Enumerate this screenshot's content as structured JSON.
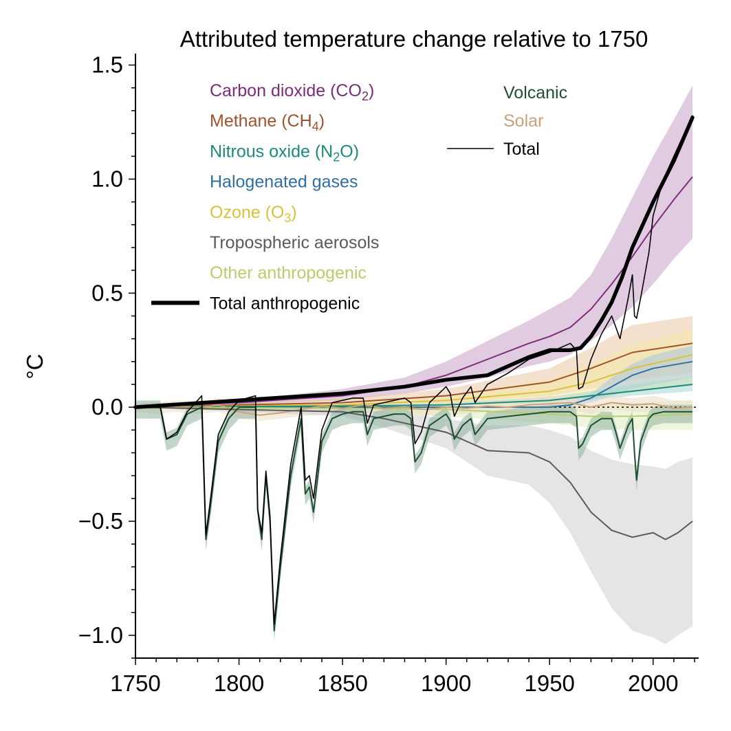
{
  "chart_data": {
    "type": "line",
    "title": "Attributed temperature change relative to 1750",
    "xlabel": "",
    "ylabel": "°C",
    "xlim": [
      1750,
      2022
    ],
    "ylim": [
      -1.1,
      1.55
    ],
    "xticks": [
      1750,
      1800,
      1850,
      1900,
      1950,
      2000
    ],
    "xtick_labels": [
      "1750",
      "1800",
      "1850",
      "1900",
      "1950",
      "2000"
    ],
    "yticks": [
      -1.0,
      -0.5,
      0.0,
      0.5,
      1.0,
      1.5
    ],
    "ytick_labels": [
      "−1.0",
      "−0.5",
      "0.0",
      "0.5",
      "1.0",
      "1.5"
    ],
    "grid": false,
    "zero_line": "dotted",
    "legend_left": [
      {
        "text": "Carbon dioxide (CO",
        "sub": "2",
        "tail": ")",
        "color": "#7b2d7b"
      },
      {
        "text": "Methane (CH",
        "sub": "4",
        "tail": ")",
        "color": "#a0522d"
      },
      {
        "text": "Nitrous oxide (N",
        "sub": "2",
        "tail": "O)",
        "color": "#1b8a7a"
      },
      {
        "text": "Halogenated gases",
        "sub": "",
        "tail": "",
        "color": "#2f6fa3"
      },
      {
        "text": "Ozone (O",
        "sub": "3",
        "tail": ")",
        "color": "#d9c23a"
      },
      {
        "text": "Tropospheric aerosols",
        "sub": "",
        "tail": "",
        "color": "#5a5a5a"
      },
      {
        "text": "Other anthropogenic",
        "sub": "",
        "tail": "",
        "color": "#b5cf6b"
      },
      {
        "text": "Total anthropogenic",
        "sub": "",
        "tail": "",
        "color": "#000000"
      }
    ],
    "legend_right": [
      {
        "text": "Volcanic",
        "color": "#1f4e32"
      },
      {
        "text": "Solar",
        "color": "#c9a27a"
      },
      {
        "text": "Total",
        "color": "#000000"
      }
    ],
    "series": [
      {
        "name": "Carbon dioxide (CO2)",
        "color": "#7b2d7b",
        "band_color": "#c9a1c9",
        "x": [
          1750,
          1800,
          1850,
          1880,
          1900,
          1920,
          1940,
          1950,
          1960,
          1970,
          1980,
          1990,
          2000,
          2010,
          2019
        ],
        "y": [
          0.0,
          0.02,
          0.05,
          0.09,
          0.14,
          0.21,
          0.28,
          0.31,
          0.35,
          0.43,
          0.54,
          0.66,
          0.79,
          0.91,
          1.01
        ],
        "low": [
          0.0,
          0.01,
          0.03,
          0.06,
          0.09,
          0.13,
          0.18,
          0.2,
          0.23,
          0.29,
          0.36,
          0.44,
          0.54,
          0.65,
          0.74
        ],
        "high": [
          0.0,
          0.03,
          0.08,
          0.13,
          0.2,
          0.29,
          0.38,
          0.43,
          0.48,
          0.58,
          0.74,
          0.92,
          1.1,
          1.26,
          1.41
        ]
      },
      {
        "name": "Methane (CH4)",
        "color": "#a0522d",
        "band_color": "#e9c9a6",
        "x": [
          1750,
          1850,
          1900,
          1950,
          1970,
          1990,
          2019
        ],
        "y": [
          0.0,
          0.02,
          0.05,
          0.11,
          0.17,
          0.24,
          0.28
        ],
        "low": [
          0.0,
          0.0,
          0.02,
          0.05,
          0.08,
          0.12,
          0.15
        ],
        "high": [
          0.0,
          0.04,
          0.08,
          0.17,
          0.26,
          0.36,
          0.4
        ]
      },
      {
        "name": "Ozone (O3)",
        "color": "#d9c23a",
        "band_color": "#f3eaa4",
        "x": [
          1750,
          1850,
          1900,
          1950,
          1970,
          1990,
          2019
        ],
        "y": [
          0.0,
          0.01,
          0.03,
          0.07,
          0.11,
          0.17,
          0.23
        ],
        "low": [
          0.0,
          0.0,
          0.01,
          0.02,
          0.04,
          0.07,
          0.1
        ],
        "high": [
          0.0,
          0.02,
          0.05,
          0.12,
          0.19,
          0.27,
          0.34
        ]
      },
      {
        "name": "Halogenated gases",
        "color": "#2f6fa3",
        "band_color": "#a9c6df",
        "x": [
          1750,
          1950,
          1960,
          1970,
          1980,
          1990,
          2000,
          2019
        ],
        "y": [
          0.0,
          0.0,
          0.01,
          0.04,
          0.09,
          0.14,
          0.17,
          0.2
        ],
        "low": [
          0.0,
          0.0,
          0.0,
          0.02,
          0.05,
          0.08,
          0.1,
          0.13
        ],
        "high": [
          0.0,
          0.0,
          0.02,
          0.06,
          0.13,
          0.19,
          0.23,
          0.27
        ]
      },
      {
        "name": "Nitrous oxide (N2O)",
        "color": "#1b8a7a",
        "band_color": "#a7d8cd",
        "x": [
          1750,
          1850,
          1900,
          1950,
          1970,
          1990,
          2019
        ],
        "y": [
          0.0,
          0.005,
          0.01,
          0.03,
          0.05,
          0.07,
          0.1
        ],
        "low": [
          0.0,
          0.0,
          0.005,
          0.015,
          0.03,
          0.05,
          0.07
        ],
        "high": [
          0.0,
          0.01,
          0.02,
          0.045,
          0.07,
          0.1,
          0.13
        ]
      },
      {
        "name": "Other anthropogenic",
        "color": "#b5cf6b",
        "band_color": "#e2edc0",
        "x": [
          1750,
          1850,
          1900,
          1950,
          1970,
          1990,
          2019
        ],
        "y": [
          0.0,
          -0.005,
          -0.01,
          -0.03,
          -0.04,
          -0.04,
          -0.03
        ],
        "low": [
          0.0,
          -0.02,
          -0.04,
          -0.07,
          -0.09,
          -0.1,
          -0.1
        ],
        "high": [
          0.0,
          0.01,
          0.02,
          0.01,
          0.01,
          0.02,
          0.03
        ]
      },
      {
        "name": "Solar",
        "color": "#c9a27a",
        "band_color": "#ecdcc7",
        "x": [
          1750,
          1760,
          1770,
          1780,
          1790,
          1800,
          1810,
          1820,
          1830,
          1840,
          1850,
          1860,
          1870,
          1880,
          1890,
          1900,
          1910,
          1920,
          1930,
          1940,
          1950,
          1960,
          1970,
          1980,
          1990,
          2000,
          2010,
          2019
        ],
        "y": [
          0.0,
          -0.005,
          0.005,
          -0.005,
          0.01,
          -0.02,
          -0.035,
          -0.025,
          -0.01,
          0.005,
          -0.005,
          0.01,
          -0.005,
          0.0,
          -0.01,
          0.0,
          -0.005,
          0.005,
          0.0,
          0.01,
          0.015,
          0.02,
          0.0,
          0.02,
          0.01,
          0.015,
          -0.005,
          0.0
        ],
        "low": [
          -0.02,
          -0.03,
          -0.02,
          -0.03,
          -0.02,
          -0.05,
          -0.06,
          -0.05,
          -0.04,
          -0.03,
          -0.03,
          -0.02,
          -0.03,
          -0.03,
          -0.04,
          -0.03,
          -0.03,
          -0.02,
          -0.03,
          -0.02,
          -0.02,
          -0.01,
          -0.03,
          -0.01,
          -0.02,
          -0.02,
          -0.03,
          -0.03
        ],
        "high": [
          0.02,
          0.02,
          0.03,
          0.02,
          0.04,
          0.01,
          0.0,
          0.0,
          0.02,
          0.03,
          0.02,
          0.04,
          0.02,
          0.03,
          0.02,
          0.03,
          0.02,
          0.03,
          0.03,
          0.04,
          0.05,
          0.05,
          0.03,
          0.05,
          0.04,
          0.05,
          0.03,
          0.03
        ]
      },
      {
        "name": "Tropospheric aerosols",
        "color": "#5a5a5a",
        "band_color": "#cfcfcf",
        "x": [
          1750,
          1850,
          1870,
          1900,
          1920,
          1940,
          1950,
          1960,
          1970,
          1980,
          1990,
          2000,
          2006,
          2012,
          2019
        ],
        "y": [
          0.0,
          -0.02,
          -0.05,
          -0.11,
          -0.19,
          -0.2,
          -0.24,
          -0.33,
          -0.46,
          -0.54,
          -0.57,
          -0.55,
          -0.58,
          -0.55,
          -0.5
        ],
        "low": [
          0.0,
          -0.04,
          -0.09,
          -0.18,
          -0.3,
          -0.34,
          -0.42,
          -0.55,
          -0.72,
          -0.88,
          -0.98,
          -1.01,
          -1.04,
          -1.0,
          -0.96
        ],
        "high": [
          0.0,
          -0.005,
          -0.02,
          -0.05,
          -0.08,
          -0.08,
          -0.1,
          -0.13,
          -0.19,
          -0.23,
          -0.25,
          -0.26,
          -0.27,
          -0.24,
          -0.22
        ]
      },
      {
        "name": "Volcanic",
        "color": "#1f4e32",
        "band_color": "#8fb39f",
        "x": [
          1750,
          1762,
          1765,
          1770,
          1775,
          1782,
          1784,
          1786,
          1790,
          1795,
          1800,
          1808,
          1809,
          1811,
          1813,
          1815,
          1817,
          1820,
          1825,
          1830,
          1832,
          1834,
          1836,
          1840,
          1845,
          1850,
          1855,
          1860,
          1862,
          1865,
          1870,
          1875,
          1880,
          1883,
          1885,
          1888,
          1892,
          1900,
          1902,
          1904,
          1908,
          1912,
          1914,
          1920,
          1930,
          1940,
          1950,
          1960,
          1963,
          1964,
          1966,
          1970,
          1975,
          1980,
          1982,
          1984,
          1988,
          1990,
          1991,
          1992,
          1994,
          1998,
          2000,
          2005,
          2010,
          2019
        ],
        "y": [
          0.0,
          0.0,
          -0.14,
          -0.12,
          -0.03,
          0.0,
          -0.58,
          -0.45,
          -0.15,
          -0.05,
          0.0,
          0.0,
          -0.45,
          -0.58,
          -0.3,
          -0.5,
          -0.98,
          -0.7,
          -0.3,
          -0.05,
          -0.38,
          -0.35,
          -0.46,
          -0.15,
          -0.05,
          -0.03,
          -0.02,
          -0.02,
          -0.12,
          -0.05,
          -0.04,
          -0.03,
          -0.03,
          -0.05,
          -0.24,
          -0.2,
          -0.08,
          -0.03,
          -0.06,
          -0.14,
          -0.08,
          -0.05,
          -0.12,
          -0.05,
          -0.04,
          -0.03,
          -0.02,
          -0.02,
          -0.04,
          -0.18,
          -0.16,
          -0.08,
          -0.05,
          -0.05,
          -0.11,
          -0.18,
          -0.08,
          -0.05,
          -0.2,
          -0.32,
          -0.15,
          -0.05,
          -0.03,
          -0.02,
          -0.02,
          -0.02
        ],
        "band": 0.05
      }
    ],
    "total_anthropogenic": {
      "name": "Total anthropogenic",
      "color": "#000000",
      "x": [
        1750,
        1800,
        1850,
        1880,
        1900,
        1920,
        1940,
        1950,
        1955,
        1960,
        1965,
        1970,
        1975,
        1980,
        1985,
        1990,
        2000,
        2010,
        2019
      ],
      "y": [
        0.0,
        0.03,
        0.06,
        0.09,
        0.12,
        0.14,
        0.22,
        0.25,
        0.25,
        0.25,
        0.26,
        0.31,
        0.38,
        0.46,
        0.57,
        0.7,
        0.9,
        1.08,
        1.27
      ]
    },
    "total": {
      "name": "Total",
      "color": "#000000",
      "x": [
        1750,
        1762,
        1765,
        1770,
        1775,
        1782,
        1784,
        1786,
        1790,
        1795,
        1800,
        1808,
        1809,
        1811,
        1813,
        1815,
        1817,
        1820,
        1825,
        1830,
        1832,
        1834,
        1836,
        1840,
        1845,
        1850,
        1855,
        1860,
        1862,
        1865,
        1870,
        1875,
        1880,
        1883,
        1885,
        1888,
        1892,
        1900,
        1902,
        1904,
        1908,
        1912,
        1914,
        1920,
        1930,
        1940,
        1950,
        1960,
        1963,
        1964,
        1966,
        1970,
        1975,
        1980,
        1982,
        1984,
        1988,
        1990,
        1991,
        1992,
        1994,
        1998,
        2000,
        2005,
        2010,
        2019
      ],
      "y": [
        0.0,
        0.0,
        -0.14,
        -0.11,
        -0.02,
        0.05,
        -0.56,
        -0.42,
        -0.12,
        -0.02,
        0.03,
        0.05,
        -0.45,
        -0.55,
        -0.28,
        -0.48,
        -0.95,
        -0.66,
        -0.25,
        0.0,
        -0.32,
        -0.3,
        -0.4,
        -0.1,
        0.02,
        0.03,
        0.04,
        0.04,
        -0.07,
        0.01,
        0.02,
        0.03,
        0.04,
        0.02,
        -0.16,
        -0.11,
        0.02,
        0.09,
        0.06,
        -0.04,
        0.04,
        0.09,
        0.02,
        0.1,
        0.15,
        0.21,
        0.24,
        0.28,
        0.25,
        0.08,
        0.09,
        0.21,
        0.32,
        0.4,
        0.35,
        0.3,
        0.48,
        0.58,
        0.4,
        0.39,
        0.48,
        0.68,
        0.84,
        1.0,
        1.1,
        1.28
      ]
    }
  }
}
